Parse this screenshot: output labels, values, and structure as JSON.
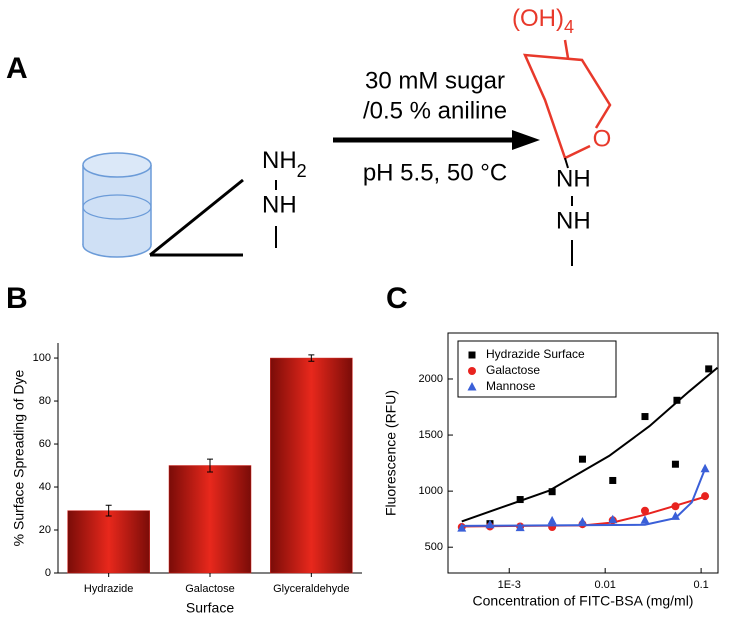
{
  "diagram": {
    "label": "A",
    "reactant": {
      "nh2": "NH",
      "sub2": "2",
      "nh": "NH"
    },
    "conditions": [
      "30 mM sugar",
      "/0.5 % aniline",
      "pH 5.5, 50 °C"
    ],
    "product": {
      "oh": "(OH)",
      "sub4": "4",
      "o": "O",
      "nh": [
        "NH",
        "NH"
      ]
    }
  },
  "chart_data": [
    {
      "type": "bar",
      "panel": "B",
      "xlabel": "Surface",
      "ylabel": "% Surface Spreading of Dye",
      "categories": [
        "Hydrazide",
        "Galactose",
        "Glyceraldehyde"
      ],
      "values": [
        29,
        50,
        100
      ],
      "errors": [
        2.5,
        3,
        1.5
      ],
      "color": "#d0201a",
      "ylim": [
        0,
        107
      ],
      "yticks": [
        0,
        20,
        40,
        60,
        80,
        100
      ]
    },
    {
      "type": "scatter",
      "panel": "C",
      "xlabel": "Concentration of FITC-BSA (mg/ml)",
      "ylabel": "Fluorescence (RFU)",
      "xscale": "log",
      "xlim": [
        0.00023,
        0.15
      ],
      "ylim": [
        270,
        2410
      ],
      "xticks": [
        {
          "value": 0.001,
          "label": "1E-3"
        },
        0.01,
        0.1
      ],
      "yticks": [
        500,
        1000,
        1500,
        2000
      ],
      "legend": "upper left",
      "series": [
        {
          "name": "Hydrazide Surface",
          "color": "#000000",
          "marker": "square",
          "x": [
            0.00063,
            0.0013,
            0.0028,
            0.0058,
            0.012,
            0.026,
            0.054,
            0.056,
            0.12
          ],
          "values": [
            710,
            925,
            995,
            1285,
            1095,
            1665,
            1240,
            1810,
            2090
          ],
          "fit": {
            "x": [
              0.00032,
              0.0026,
              0.011,
              0.029,
              0.075,
              0.148
            ],
            "values": [
              730,
              1004,
              1314,
              1580,
              1889,
              2100
            ]
          }
        },
        {
          "name": "Galactose",
          "color": "#e8231f",
          "marker": "circle",
          "x": [
            0.00032,
            0.00063,
            0.0013,
            0.0028,
            0.0058,
            0.012,
            0.026,
            0.054,
            0.11
          ],
          "values": [
            680,
            685,
            685,
            680,
            705,
            740,
            825,
            865,
            955
          ],
          "fit": {
            "x": [
              0.00032,
              0.006,
              0.012,
              0.026,
              0.054,
              0.11
            ],
            "values": [
              685,
              695,
              720,
              790,
              870,
              950
            ]
          }
        },
        {
          "name": "Mannose",
          "color": "#3a5fd8",
          "marker": "triangle",
          "x": [
            0.00032,
            0.00063,
            0.0013,
            0.0028,
            0.0058,
            0.012,
            0.026,
            0.054,
            0.11
          ],
          "values": [
            670,
            700,
            675,
            735,
            725,
            745,
            740,
            775,
            1200
          ],
          "fit": {
            "x": [
              0.00032,
              0.026,
              0.054,
              0.08,
              0.11
            ],
            "values": [
              690,
              700,
              760,
              900,
              1200
            ]
          }
        }
      ]
    }
  ]
}
